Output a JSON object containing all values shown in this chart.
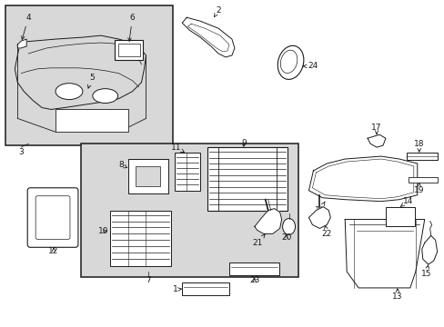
{
  "bg_color": "#ffffff",
  "line_color": "#1a1a1a",
  "label_color": "#1a1a1a",
  "inset_bg": "#d8d8d8",
  "main_box_bg": "#d8d8d8",
  "figsize": [
    4.89,
    3.6
  ],
  "dpi": 100
}
